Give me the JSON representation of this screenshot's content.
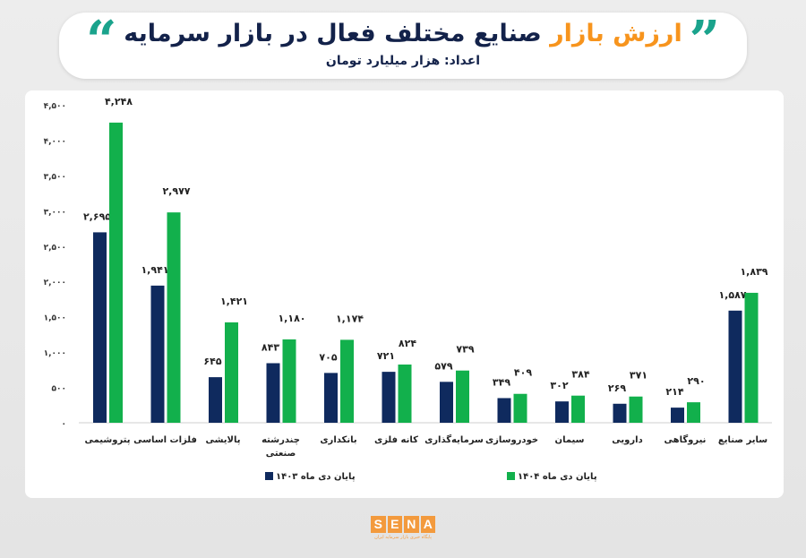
{
  "header": {
    "title_accent": "ارزش بازار",
    "title_rest": " صنایع مختلف فعال در بازار سرمایه",
    "subtitle": "اعداد: هزار میلیارد تومان"
  },
  "logo": {
    "letters": [
      "S",
      "E",
      "N",
      "A"
    ],
    "tagline": "پایگاه خبری بازار سرمایه ایران"
  },
  "colors": {
    "series_1403": "#0f2a5e",
    "series_1404": "#12b04c",
    "accent": "#f7941d",
    "quote": "#1aa38c"
  },
  "chart_data": {
    "type": "bar",
    "ylim": [
      0,
      4500
    ],
    "grid": false,
    "legend_placement": "bottom",
    "yticks": [
      0,
      500,
      1000,
      1500,
      2000,
      2500,
      3000,
      3500,
      4000,
      4500
    ],
    "ytick_labels": [
      "۰",
      "۵۰۰",
      "۱,۰۰۰",
      "۱,۵۰۰",
      "۲,۰۰۰",
      "۲,۵۰۰",
      "۳,۰۰۰",
      "۳,۵۰۰",
      "۴,۰۰۰",
      "۴,۵۰۰"
    ],
    "categories": [
      "پتروشیمی",
      "فلزات اساسی",
      "پالایشی",
      "چندرشته صنعتی",
      "بانکداری",
      "کانه فلزی",
      "سرمایه‌گذاری",
      "خودروسازی",
      "سیمان",
      "دارویی",
      "نیروگاهی",
      "سایر صنایع"
    ],
    "series": [
      {
        "name": "پایان دی ماه ۱۴۰۳",
        "values": [
          2695,
          1941,
          645,
          843,
          705,
          721,
          579,
          349,
          302,
          269,
          214,
          1587
        ],
        "labels": [
          "۲,۶۹۵",
          "۱,۹۴۱",
          "۶۴۵",
          "۸۴۳",
          "۷۰۵",
          "۷۲۱",
          "۵۷۹",
          "۳۴۹",
          "۳۰۲",
          "۲۶۹",
          "۲۱۴",
          "۱,۵۸۷"
        ]
      },
      {
        "name": "پایان دی ماه ۱۴۰۴",
        "values": [
          4248,
          2977,
          1421,
          1180,
          1174,
          824,
          739,
          409,
          384,
          371,
          290,
          1839
        ],
        "labels": [
          "۴,۲۴۸",
          "۲,۹۷۷",
          "۱,۴۲۱",
          "۱,۱۸۰",
          "۱,۱۷۴",
          "۸۲۴",
          "۷۳۹",
          "۴۰۹",
          "۳۸۴",
          "۳۷۱",
          "۲۹۰",
          "۱,۸۳۹"
        ]
      }
    ]
  }
}
